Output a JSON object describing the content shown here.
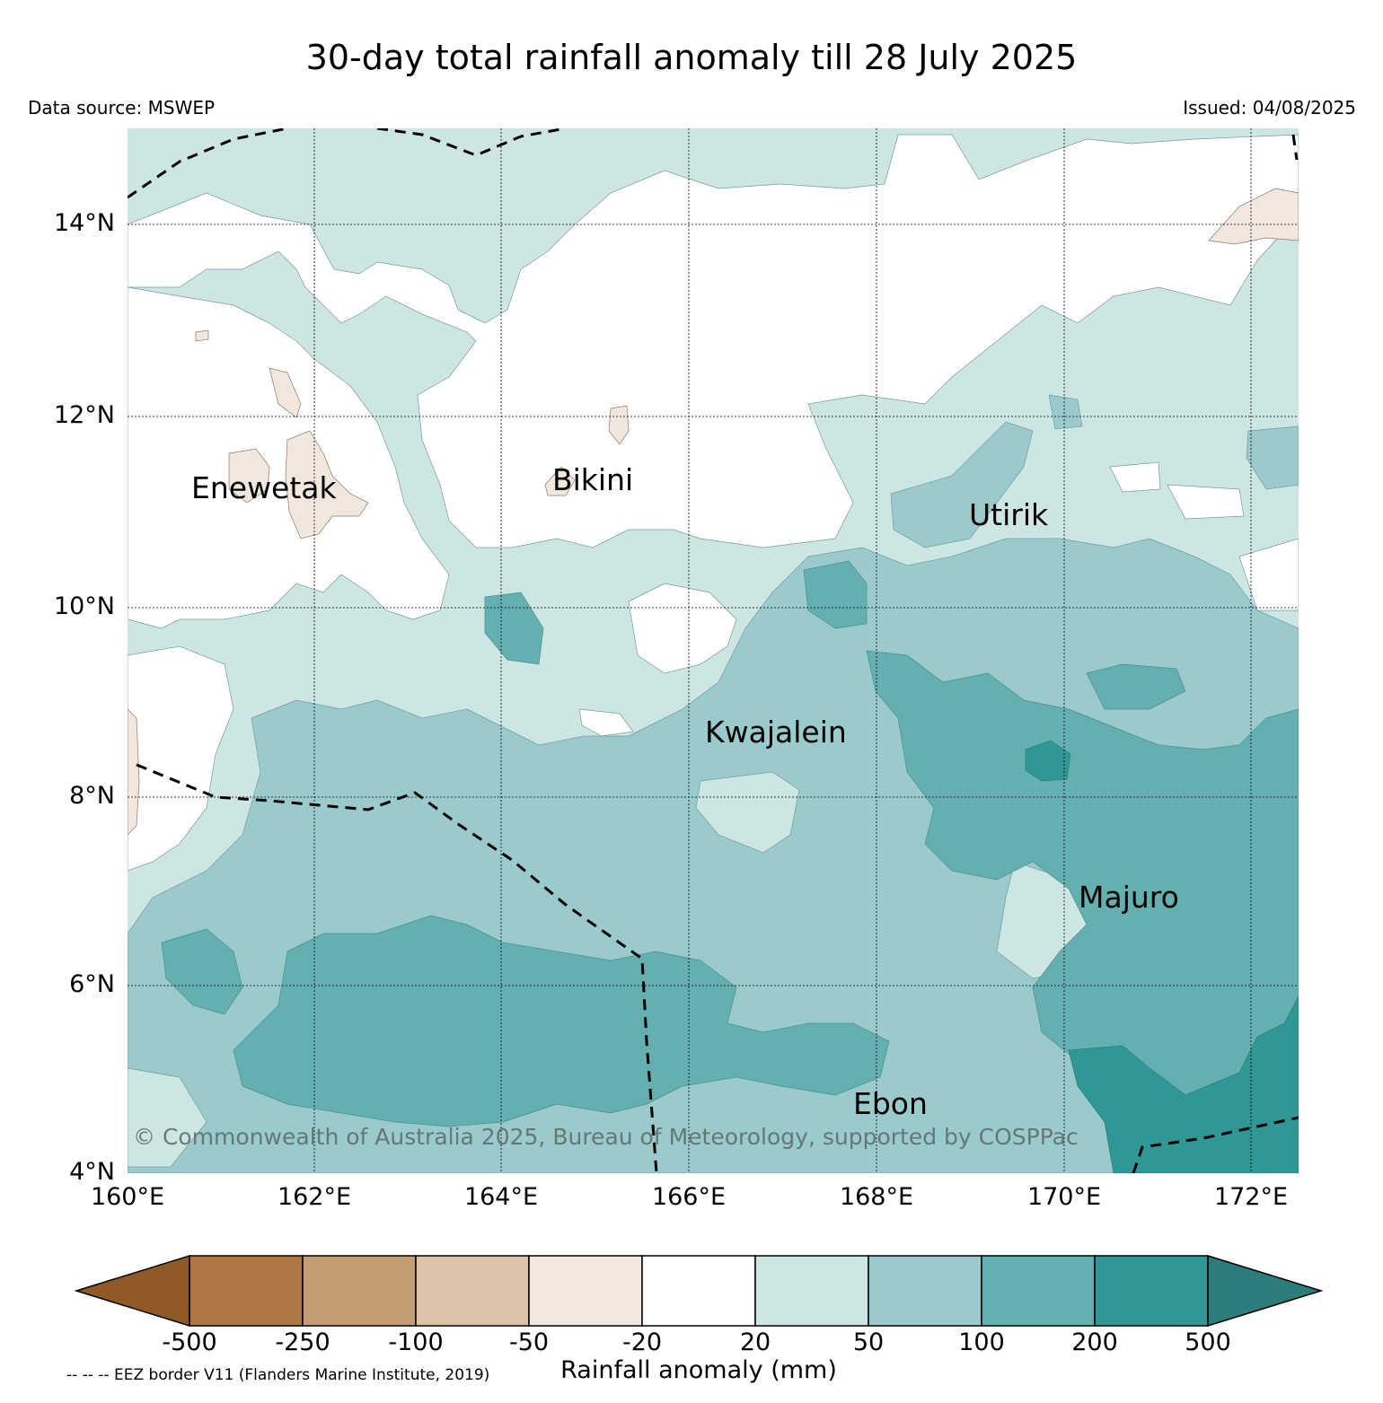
{
  "title": "30-day total rainfall anomaly till 28 July 2025",
  "data_source": "Data source: MSWEP",
  "issued": "Issued: 04/08/2025",
  "map": {
    "lat_labels": [
      "14°N",
      "12°N",
      "10°N",
      "8°N",
      "6°N",
      "4°N"
    ],
    "lon_labels": [
      "160°E",
      "162°E",
      "164°E",
      "166°E",
      "168°E",
      "170°E",
      "172°E"
    ],
    "places": [
      "Enewetak",
      "Bikini",
      "Utirik",
      "Kwajalein",
      "Majuro",
      "Ebon"
    ],
    "copyright": "© Commonwealth of Australia 2025, Bureau of Meteorology, supported by COSPPac",
    "gridlines": true
  },
  "legend": {
    "tick_labels": [
      "-500",
      "-250",
      "-100",
      "-50",
      "-20",
      "20",
      "50",
      "100",
      "200",
      "500"
    ],
    "title": "Rainfall anomaly (mm)",
    "eez_note": "-- -- -- EEZ border V11 (Flanders Marine Institute, 2019)",
    "colors": [
      "#8f5a26",
      "#ad7642",
      "#c49c74",
      "#dbc3a8",
      "#f1e7dd",
      "#ffffff",
      "#cde5e3",
      "#9acacb",
      "#64b0b1",
      "#2f9894",
      "#2b7c7a"
    ]
  }
}
